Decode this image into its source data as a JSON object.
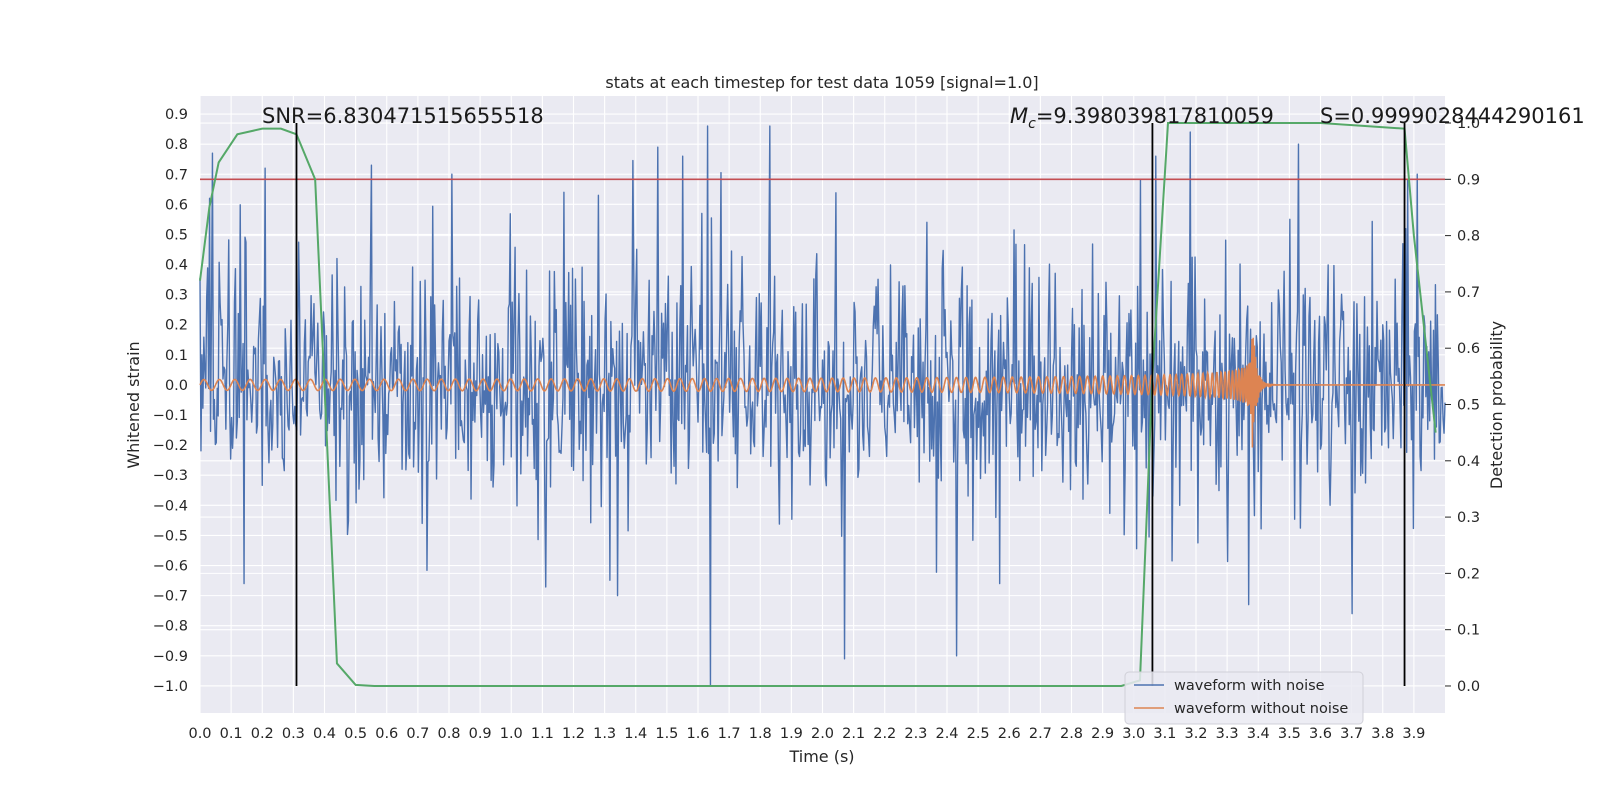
{
  "chart_data": {
    "type": "line",
    "title": "stats at each timestep for test data 1059 [signal=1.0]",
    "xlabel": "Time (s)",
    "ylabel": "Whitened strain",
    "y2label": "Detection probability",
    "xlim": [
      0.0,
      4.0
    ],
    "ylim": [
      -1.09,
      0.96
    ],
    "y2lim": [
      -0.048,
      1.048
    ],
    "xticks": [
      "0.0",
      "0.1",
      "0.2",
      "0.3",
      "0.4",
      "0.5",
      "0.6",
      "0.7",
      "0.8",
      "0.9",
      "1.0",
      "1.1",
      "1.2",
      "1.3",
      "1.4",
      "1.5",
      "1.6",
      "1.7",
      "1.8",
      "1.9",
      "2.0",
      "2.1",
      "2.2",
      "2.3",
      "2.4",
      "2.5",
      "2.6",
      "2.7",
      "2.8",
      "2.9",
      "3.0",
      "3.1",
      "3.2",
      "3.3",
      "3.4",
      "3.5",
      "3.6",
      "3.7",
      "3.8",
      "3.9"
    ],
    "yticks": [
      "0.9",
      "0.8",
      "0.7",
      "0.6",
      "0.5",
      "0.4",
      "0.3",
      "0.2",
      "0.1",
      "0.0",
      "−0.1",
      "−0.2",
      "−0.3",
      "−0.4",
      "−0.5",
      "−0.6",
      "−0.7",
      "−0.8",
      "−0.9",
      "−1.0"
    ],
    "y2ticks": [
      "1.0",
      "0.9",
      "0.8",
      "0.7",
      "0.6",
      "0.5",
      "0.4",
      "0.3",
      "0.2",
      "0.1",
      "0.0"
    ],
    "legend_position": "bottom-right",
    "series": [
      {
        "name": "waveform with noise",
        "color": "#4c72b0",
        "axis": "left",
        "note": "noise signal, amplitude roughly -0.5 to 0.5 with spikes to 0.86 and -1.0"
      },
      {
        "name": "waveform without noise",
        "color": "#dd8452",
        "axis": "left",
        "note": "chirp, amplitude ~0.02 growing to ~0.24 at merger t=3.38 s, flat after"
      },
      {
        "name": "detection probability",
        "color": "#55a868",
        "axis": "right",
        "x": [
          0.0,
          0.03,
          0.06,
          0.12,
          0.2,
          0.26,
          0.31,
          0.37,
          0.44,
          0.5,
          0.56,
          1.0,
          2.0,
          2.96,
          3.02,
          3.06,
          3.11,
          3.2,
          3.4,
          3.6,
          3.87,
          3.9,
          3.97
        ],
        "y": [
          0.72,
          0.85,
          0.93,
          0.98,
          0.99,
          0.99,
          0.98,
          0.9,
          0.04,
          0.002,
          0.0,
          0.0,
          0.0,
          0.0,
          0.01,
          0.55,
          1.0,
          1.0,
          1.0,
          1.0,
          0.99,
          0.8,
          0.45
        ]
      }
    ],
    "threshold": {
      "axis": "right",
      "value": 0.9,
      "color": "#c44e52"
    },
    "vertical_lines": [
      0.31,
      3.06,
      3.87
    ],
    "annotations": {
      "snr": "SNR=6.830471515655518",
      "mc": "=9.398039817810059",
      "mc_symbol": "M",
      "mc_subscript": "c",
      "s": "S=0.9999028444290161"
    }
  }
}
